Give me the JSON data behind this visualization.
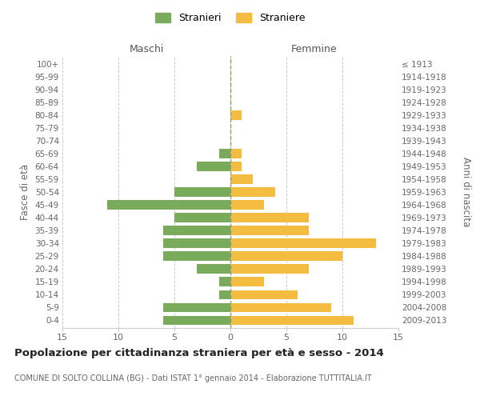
{
  "age_groups": [
    "0-4",
    "5-9",
    "10-14",
    "15-19",
    "20-24",
    "25-29",
    "30-34",
    "35-39",
    "40-44",
    "45-49",
    "50-54",
    "55-59",
    "60-64",
    "65-69",
    "70-74",
    "75-79",
    "80-84",
    "85-89",
    "90-94",
    "95-99",
    "100+"
  ],
  "birth_years": [
    "2009-2013",
    "2004-2008",
    "1999-2003",
    "1994-1998",
    "1989-1993",
    "1984-1988",
    "1979-1983",
    "1974-1978",
    "1969-1973",
    "1964-1968",
    "1959-1963",
    "1954-1958",
    "1949-1953",
    "1944-1948",
    "1939-1943",
    "1934-1938",
    "1929-1933",
    "1924-1928",
    "1919-1923",
    "1914-1918",
    "≤ 1913"
  ],
  "males": [
    6,
    6,
    1,
    1,
    3,
    6,
    6,
    6,
    5,
    11,
    5,
    0,
    3,
    1,
    0,
    0,
    0,
    0,
    0,
    0,
    0
  ],
  "females": [
    11,
    9,
    6,
    3,
    7,
    10,
    13,
    7,
    7,
    3,
    4,
    2,
    1,
    1,
    0,
    0,
    1,
    0,
    0,
    0,
    0
  ],
  "male_color": "#7aaa5c",
  "female_color": "#f5bc42",
  "male_label": "Stranieri",
  "female_label": "Straniere",
  "title": "Popolazione per cittadinanza straniera per età e sesso - 2014",
  "subtitle": "COMUNE DI SOLTO COLLINA (BG) - Dati ISTAT 1° gennaio 2014 - Elaborazione TUTTITALIA.IT",
  "xlabel_left": "Maschi",
  "xlabel_right": "Femmine",
  "ylabel_left": "Fasce di età",
  "ylabel_right": "Anni di nascita",
  "xlim": 15,
  "background_color": "#ffffff",
  "grid_color": "#cccccc",
  "dashed_line_color": "#999966"
}
